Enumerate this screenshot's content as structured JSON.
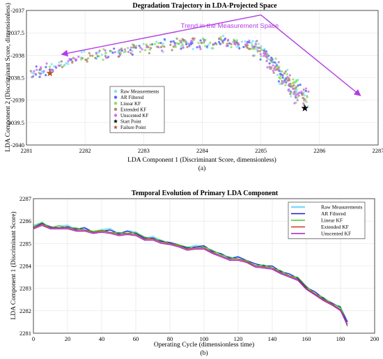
{
  "chart_data": [
    {
      "type": "scatter",
      "title": "Degradation Trajectory in LDA-Projected Space",
      "xlabel": "LDA Component 1 (Discriminant Score, dimensionless)",
      "ylabel": "LDA Component 2 (Discriminant Score, dimensionless)",
      "xlim": [
        2281,
        2287
      ],
      "ylim": [
        -2040,
        -2037
      ],
      "x_ticks": [
        "2281",
        "2282",
        "2283",
        "2284",
        "2285",
        "2286",
        "2287"
      ],
      "y_ticks": [
        "-2037",
        "-2037.5",
        "-2038",
        "-2038.5",
        "-2039",
        "-2039.5",
        "-2040"
      ],
      "y_reversed": true,
      "grid": true,
      "legend_position": "bottom-left",
      "caption": "(a)",
      "annotation": {
        "text": "Trend in the Measurement Space",
        "color": "#b13ee3",
        "arrow1": {
          "from": [
            2285,
            -2037.1
          ],
          "to": [
            2281.6,
            -2037.98
          ]
        },
        "arrow2": {
          "from": [
            2285,
            -2037.1
          ],
          "to": [
            2286.7,
            -2038.9
          ]
        }
      },
      "series": [
        {
          "name": "Raw Measurements",
          "color": "#7fe0ff",
          "marker": "dot"
        },
        {
          "name": "AR Filtered",
          "color": "#5566ee",
          "marker": "dot"
        },
        {
          "name": "Linear KF",
          "color": "#88e25a",
          "marker": "dot"
        },
        {
          "name": "Extended KF",
          "color": "#b08a6a",
          "marker": "dot"
        },
        {
          "name": "Unscented KF",
          "color": "#d070ee",
          "marker": "dot"
        },
        {
          "name": "Start Point",
          "color": "#000000",
          "marker": "star",
          "points": [
            [
              2285.75,
              -2039.18
            ]
          ]
        },
        {
          "name": "Failure Point",
          "color": "#b5542a",
          "marker": "star",
          "points": [
            [
              2281.4,
              -2038.4
            ]
          ]
        }
      ],
      "trajectory": [
        [
          2281.1,
          -2038.4
        ],
        [
          2281.5,
          -2038.25
        ],
        [
          2281.9,
          -2038.08
        ],
        [
          2282.3,
          -2037.98
        ],
        [
          2282.8,
          -2037.85
        ],
        [
          2283.3,
          -2037.78
        ],
        [
          2283.8,
          -2037.72
        ],
        [
          2284.3,
          -2037.7
        ],
        [
          2284.7,
          -2037.74
        ],
        [
          2285.0,
          -2037.9
        ],
        [
          2285.2,
          -2038.2
        ],
        [
          2285.4,
          -2038.5
        ],
        [
          2285.6,
          -2038.8
        ],
        [
          2285.75,
          -2039.05
        ]
      ]
    },
    {
      "type": "line",
      "title": "Temporal Evolution of Primary LDA Component",
      "xlabel": "Operating Cycle (dimensionless time)",
      "ylabel": "LDA Component 1 (Discriminant Score)",
      "xlim": [
        0,
        200
      ],
      "ylim": [
        2281,
        2287
      ],
      "x_ticks": [
        "0",
        "20",
        "40",
        "60",
        "80",
        "100",
        "120",
        "140",
        "160",
        "180",
        "200"
      ],
      "y_ticks": [
        "2281",
        "2282",
        "2283",
        "2284",
        "2285",
        "2286",
        "2287"
      ],
      "grid": true,
      "legend_position": "top-right",
      "caption": "(b)",
      "x": [
        0,
        5,
        10,
        15,
        20,
        25,
        30,
        35,
        40,
        45,
        50,
        55,
        60,
        65,
        70,
        75,
        80,
        85,
        90,
        95,
        100,
        105,
        110,
        115,
        120,
        125,
        130,
        135,
        140,
        145,
        150,
        155,
        160,
        165,
        170,
        175,
        180,
        184
      ],
      "series": [
        {
          "name": "Raw Measurements",
          "color": "#7fd8ff",
          "values": [
            2285.8,
            2285.9,
            2285.7,
            2285.75,
            2285.8,
            2285.6,
            2285.7,
            2285.5,
            2285.6,
            2285.65,
            2285.4,
            2285.55,
            2285.5,
            2285.2,
            2285.3,
            2285.1,
            2285.0,
            2284.9,
            2284.8,
            2284.9,
            2284.85,
            2284.6,
            2284.5,
            2284.3,
            2284.4,
            2284.2,
            2284.05,
            2284.0,
            2283.95,
            2283.7,
            2283.6,
            2283.4,
            2283.0,
            2282.8,
            2282.5,
            2282.3,
            2282.1,
            2281.5
          ]
        },
        {
          "name": "AR Filtered",
          "color": "#1a1acc",
          "values": [
            2285.7,
            2285.9,
            2285.75,
            2285.7,
            2285.75,
            2285.65,
            2285.7,
            2285.5,
            2285.55,
            2285.6,
            2285.45,
            2285.55,
            2285.45,
            2285.25,
            2285.25,
            2285.1,
            2285.05,
            2284.95,
            2284.8,
            2284.85,
            2284.9,
            2284.65,
            2284.55,
            2284.35,
            2284.4,
            2284.25,
            2284.1,
            2284.0,
            2284.0,
            2283.75,
            2283.65,
            2283.45,
            2283.05,
            2282.85,
            2282.55,
            2282.35,
            2282.15,
            2281.5
          ]
        },
        {
          "name": "Linear KF",
          "color": "#3ccc25",
          "values": [
            2285.75,
            2285.95,
            2285.7,
            2285.8,
            2285.7,
            2285.7,
            2285.6,
            2285.55,
            2285.6,
            2285.5,
            2285.5,
            2285.45,
            2285.5,
            2285.3,
            2285.2,
            2285.15,
            2285.0,
            2284.95,
            2284.85,
            2284.8,
            2284.85,
            2284.7,
            2284.5,
            2284.4,
            2284.3,
            2284.25,
            2284.0,
            2284.05,
            2283.9,
            2283.8,
            2283.55,
            2283.5,
            2283.1,
            2282.75,
            2282.6,
            2282.3,
            2282.2,
            2281.3
          ]
        },
        {
          "name": "Extended KF",
          "color": "#cc3322",
          "values": [
            2285.7,
            2285.85,
            2285.7,
            2285.7,
            2285.7,
            2285.6,
            2285.6,
            2285.5,
            2285.55,
            2285.5,
            2285.4,
            2285.45,
            2285.4,
            2285.2,
            2285.2,
            2285.05,
            2285.0,
            2284.9,
            2284.75,
            2284.8,
            2284.8,
            2284.6,
            2284.45,
            2284.3,
            2284.3,
            2284.2,
            2284.0,
            2283.95,
            2283.9,
            2283.7,
            2283.55,
            2283.4,
            2283.0,
            2282.75,
            2282.5,
            2282.3,
            2282.05,
            2281.4
          ]
        },
        {
          "name": "Unscented KF",
          "color": "#a020d0",
          "values": [
            2285.65,
            2285.8,
            2285.65,
            2285.65,
            2285.65,
            2285.55,
            2285.55,
            2285.45,
            2285.5,
            2285.45,
            2285.35,
            2285.4,
            2285.35,
            2285.15,
            2285.15,
            2285.0,
            2284.95,
            2284.85,
            2284.7,
            2284.75,
            2284.75,
            2284.55,
            2284.4,
            2284.25,
            2284.25,
            2284.15,
            2283.95,
            2283.9,
            2283.85,
            2283.65,
            2283.5,
            2283.35,
            2282.95,
            2282.7,
            2282.45,
            2282.25,
            2282.0,
            2281.35
          ]
        }
      ]
    }
  ]
}
